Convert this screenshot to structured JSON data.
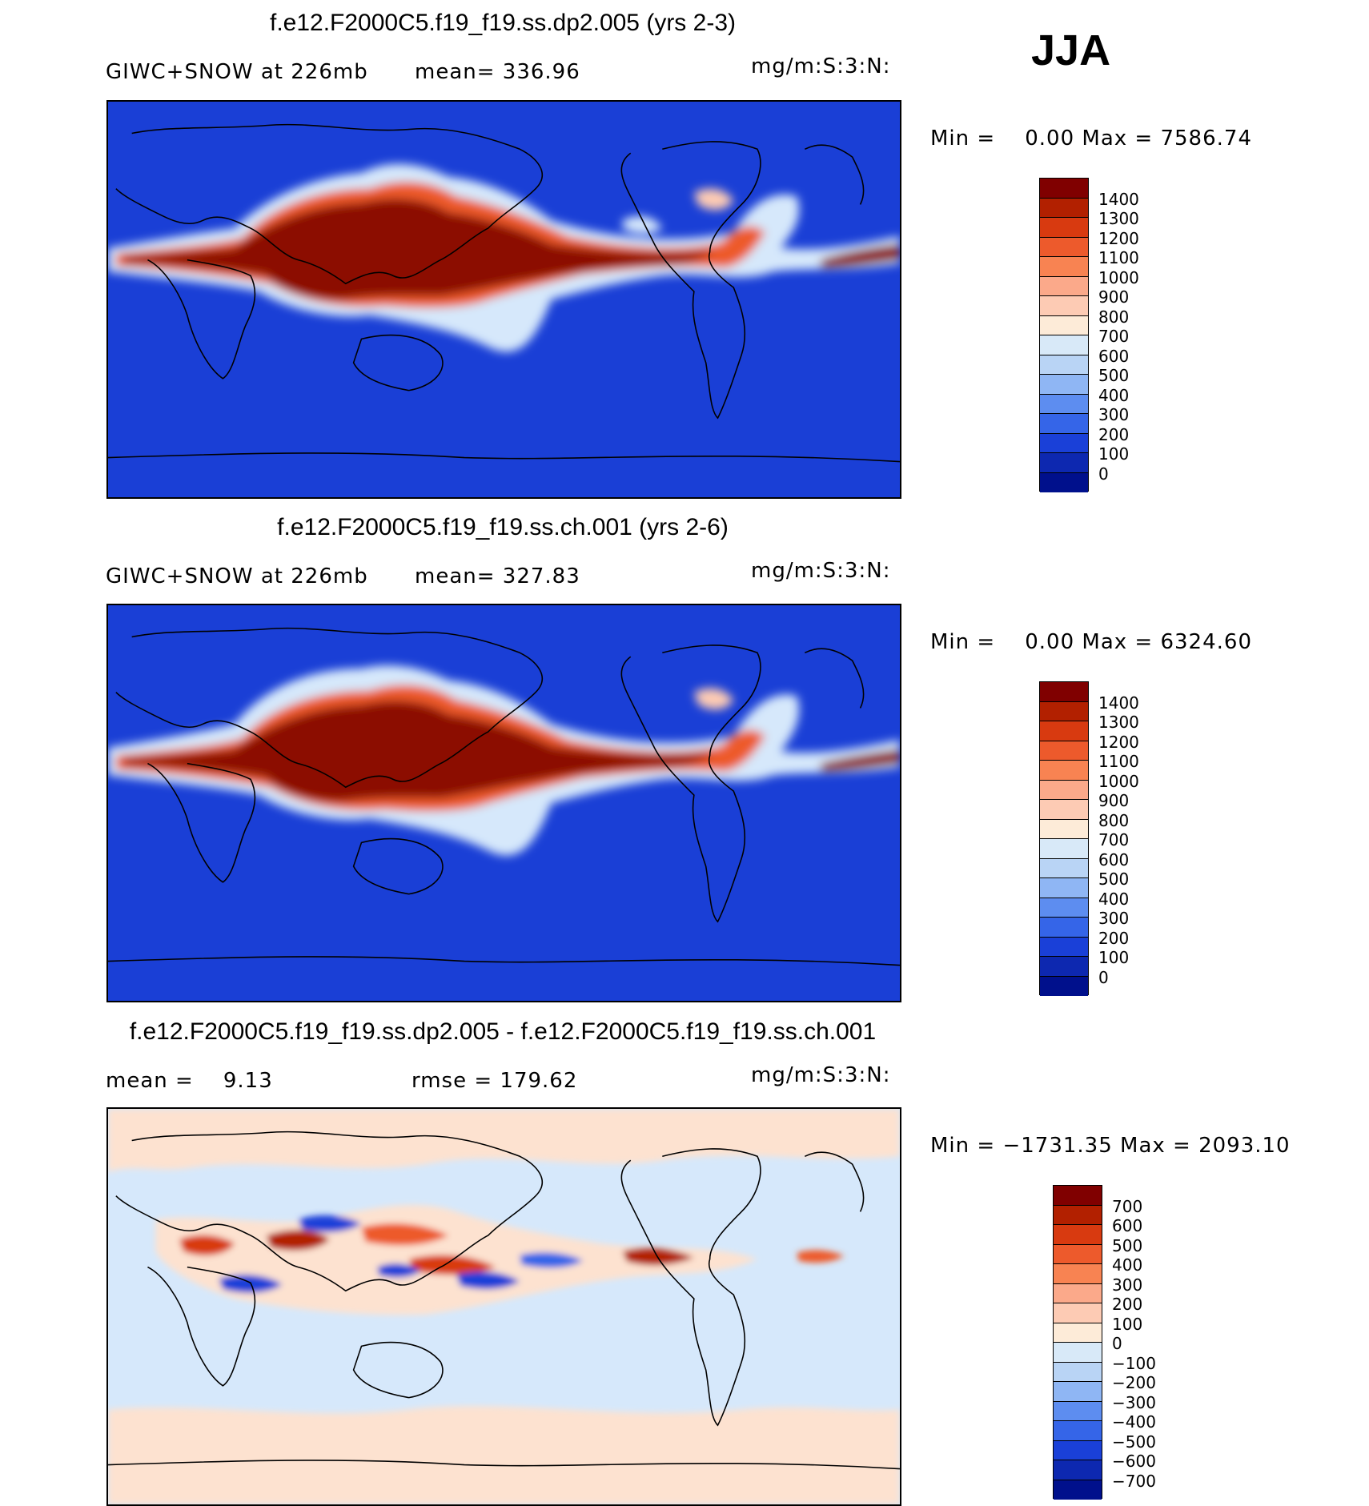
{
  "season": "JJA",
  "panels": [
    {
      "title": "f.e12.F2000C5.f19_f19.ss.dp2.005 (yrs 2-3)",
      "left_text": "GIWC+SNOW at 226mb",
      "mid_text": "mean= 336.96",
      "units": "mg/m:S:3:N:",
      "minmax": "Min =    0.00 Max = 7586.74",
      "colorbar": {
        "levels": [
          "1400",
          "1300",
          "1200",
          "1100",
          "1000",
          "900",
          "800",
          "700",
          "600",
          "500",
          "400",
          "300",
          "200",
          "100",
          "0"
        ],
        "colors": [
          "#800000",
          "#b22000",
          "#d83a10",
          "#ed5a2c",
          "#f88352",
          "#fba98a",
          "#fdcbb4",
          "#fdebd8",
          "#d8e9f8",
          "#b9d4f5",
          "#8fb6f4",
          "#5d8df0",
          "#3565e8",
          "#1a40d8",
          "#0d28b0",
          "#00108c"
        ]
      }
    },
    {
      "title": "f.e12.F2000C5.f19_f19.ss.ch.001 (yrs 2-6)",
      "left_text": "GIWC+SNOW at 226mb",
      "mid_text": "mean= 327.83",
      "units": "mg/m:S:3:N:",
      "minmax": "Min =    0.00 Max = 6324.60",
      "colorbar": {
        "levels": [
          "1400",
          "1300",
          "1200",
          "1100",
          "1000",
          "900",
          "800",
          "700",
          "600",
          "500",
          "400",
          "300",
          "200",
          "100",
          "0"
        ],
        "colors": [
          "#800000",
          "#b22000",
          "#d83a10",
          "#ed5a2c",
          "#f88352",
          "#fba98a",
          "#fdcbb4",
          "#fdebd8",
          "#d8e9f8",
          "#b9d4f5",
          "#8fb6f4",
          "#5d8df0",
          "#3565e8",
          "#1a40d8",
          "#0d28b0",
          "#00108c"
        ]
      }
    },
    {
      "title": "f.e12.F2000C5.f19_f19.ss.dp2.005 - f.e12.F2000C5.f19_f19.ss.ch.001",
      "left_text": "mean =    9.13",
      "mid_text": "rmse = 179.62",
      "units": "mg/m:S:3:N:",
      "minmax": "Min = −1731.35 Max = 2093.10",
      "colorbar": {
        "levels": [
          "700",
          "600",
          "500",
          "400",
          "300",
          "200",
          "100",
          "0",
          "−100",
          "−200",
          "−300",
          "−400",
          "−500",
          "−600",
          "−700"
        ],
        "colors": [
          "#800000",
          "#b22000",
          "#d83a10",
          "#ed5a2c",
          "#f88352",
          "#fba98a",
          "#fdcbb4",
          "#fdebd8",
          "#d8e9f8",
          "#b9d4f5",
          "#8fb6f4",
          "#5d8df0",
          "#3565e8",
          "#1a40d8",
          "#0d28b0",
          "#00108c"
        ]
      }
    }
  ],
  "colors": {
    "ocean_blue": "#1a3fd6",
    "deep_red": "#8c0a00",
    "light_pink": "#fde2d0",
    "light_blue": "#d6e8fb",
    "coast": "#000000"
  }
}
